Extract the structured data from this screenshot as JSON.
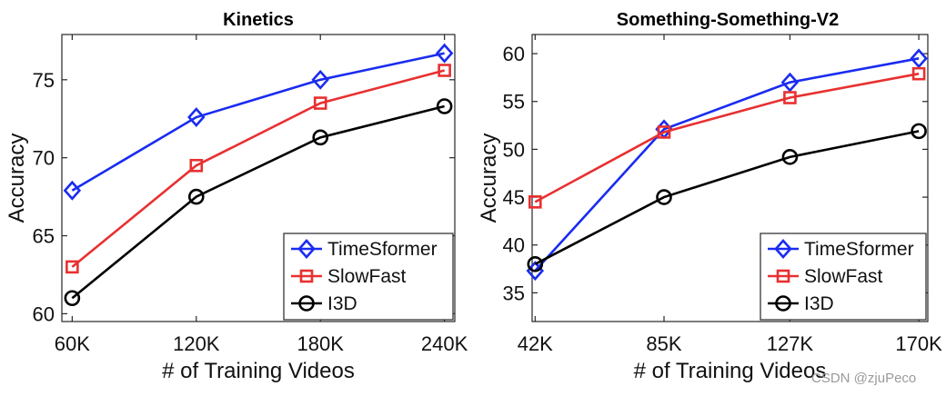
{
  "watermark": "CSDN @zjuPeco",
  "chart_data": [
    {
      "type": "line",
      "title": "Kinetics",
      "xlabel": "# of Training Videos",
      "ylabel": "Accuracy",
      "categories": [
        "60K",
        "120K",
        "180K",
        "240K"
      ],
      "x": [
        60,
        120,
        180,
        240
      ],
      "xlim": [
        55,
        245
      ],
      "ylim": [
        59.5,
        77.9
      ],
      "yticks": [
        60,
        65,
        70,
        75
      ],
      "grid": false,
      "legend_position": "bottom-right",
      "series": [
        {
          "name": "TimeSformer",
          "color": "#1a2cf0",
          "marker": "diamond",
          "values": [
            67.9,
            72.6,
            75.0,
            76.7
          ]
        },
        {
          "name": "SlowFast",
          "color": "#e83030",
          "marker": "square",
          "values": [
            63.0,
            69.5,
            73.5,
            75.6
          ]
        },
        {
          "name": "I3D",
          "color": "#000000",
          "marker": "circle",
          "values": [
            61.0,
            67.5,
            71.3,
            73.3
          ]
        }
      ]
    },
    {
      "type": "line",
      "title": "Something-Something-V2",
      "xlabel": "# of Training Videos",
      "ylabel": "Accuracy",
      "categories": [
        "42K",
        "85K",
        "127K",
        "170K"
      ],
      "x": [
        42,
        85,
        127,
        170
      ],
      "xlim": [
        41,
        173
      ],
      "ylim": [
        32,
        62
      ],
      "yticks": [
        35,
        40,
        45,
        50,
        55,
        60
      ],
      "grid": false,
      "legend_position": "bottom-right",
      "series": [
        {
          "name": "TimeSformer",
          "color": "#1a2cf0",
          "marker": "diamond",
          "values": [
            37.3,
            52.1,
            57.0,
            59.5
          ]
        },
        {
          "name": "SlowFast",
          "color": "#e83030",
          "marker": "square",
          "values": [
            44.5,
            51.8,
            55.4,
            57.9
          ]
        },
        {
          "name": "I3D",
          "color": "#000000",
          "marker": "circle",
          "values": [
            38.0,
            45.0,
            49.2,
            51.9
          ]
        }
      ]
    }
  ]
}
